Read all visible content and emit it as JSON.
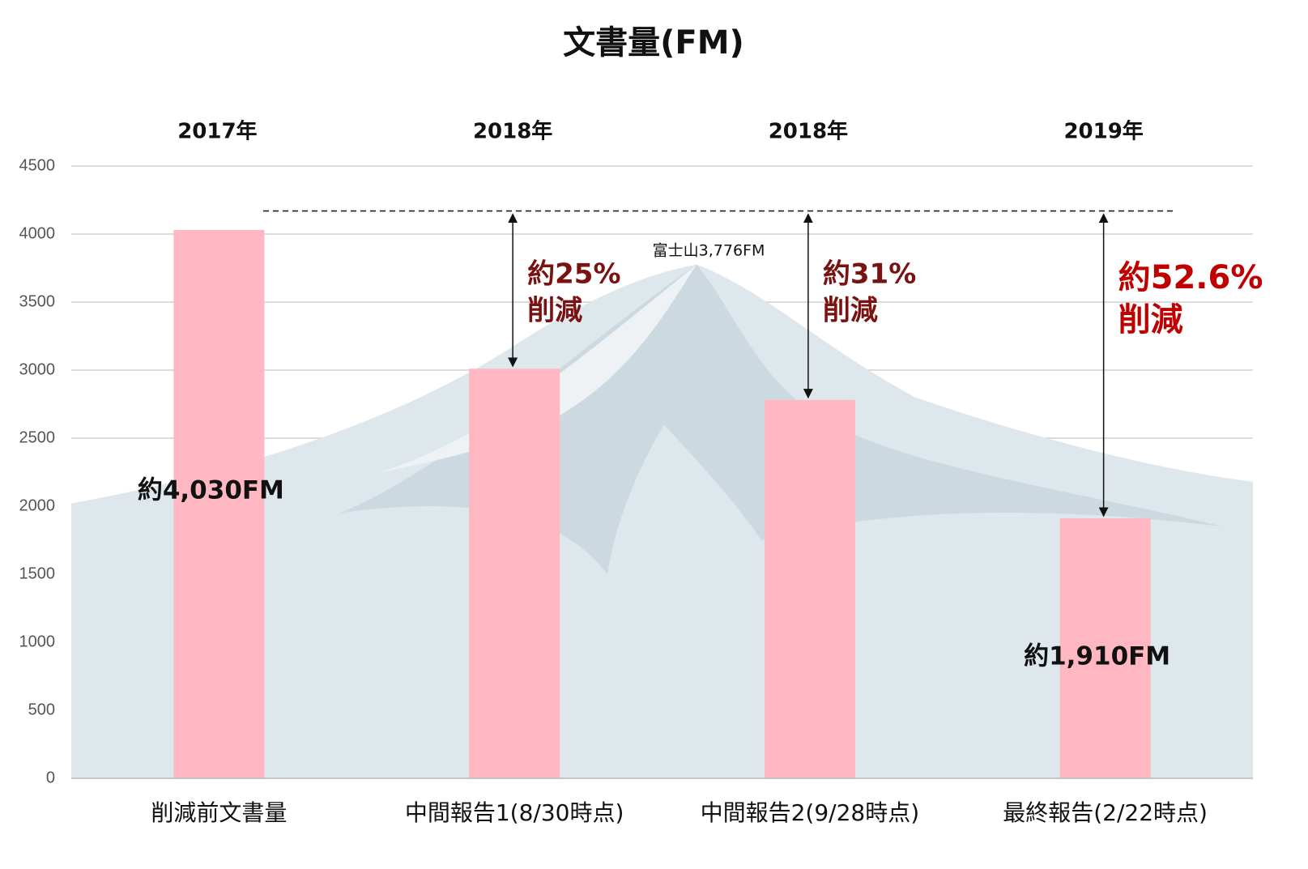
{
  "chart_data": {
    "type": "bar",
    "title": "文書量(FM)",
    "categories": [
      "削減前文書量",
      "中間報告1(8/30時点)",
      "中間報告2(9/28時点)",
      "最終報告(2/22時点)"
    ],
    "years": [
      "2017年",
      "2018年",
      "2018年",
      "2019年"
    ],
    "values": [
      4030,
      3010,
      2780,
      1910
    ],
    "value_labels": [
      "約4,030FM",
      null,
      null,
      "約1,910FM"
    ],
    "color": "#ffb8c1",
    "ylim": [
      0,
      4500
    ],
    "yticks": [
      0,
      500,
      1000,
      1500,
      2000,
      2500,
      3000,
      3500,
      4000,
      4500
    ],
    "grid": true,
    "reference_line": 4170,
    "reduction_labels": [
      null,
      [
        "約25%",
        "削減"
      ],
      [
        "約31%",
        "削減"
      ],
      [
        "約52.6%",
        "削減"
      ]
    ],
    "reduction_colors": [
      null,
      "#7a1212",
      "#7a1212",
      "#c00000"
    ],
    "mountain": {
      "label": "富士山3,776FM",
      "peak": 3776
    }
  }
}
